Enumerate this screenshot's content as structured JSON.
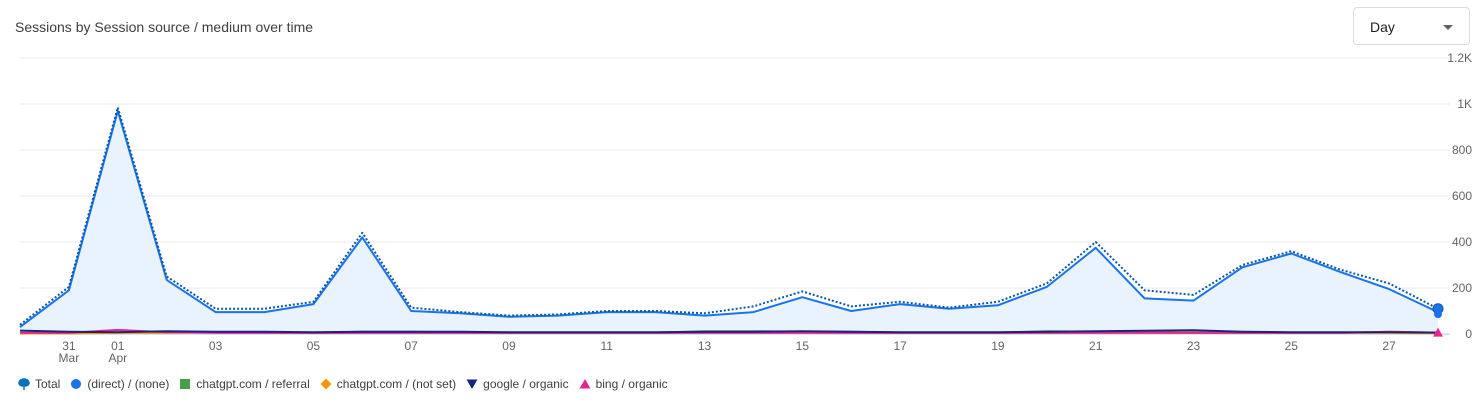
{
  "title": "Sessions by Session source / medium over time",
  "granularity": {
    "selected": "Day"
  },
  "chart_data": {
    "type": "line",
    "title": "Sessions by Session source / medium over time",
    "x_ticks": [
      {
        "day": "31",
        "month": "Mar",
        "index": 1
      },
      {
        "day": "01",
        "month": "Apr",
        "index": 2
      },
      {
        "day": "03",
        "month": "",
        "index": 4
      },
      {
        "day": "05",
        "month": "",
        "index": 6
      },
      {
        "day": "07",
        "month": "",
        "index": 8
      },
      {
        "day": "09",
        "month": "",
        "index": 10
      },
      {
        "day": "11",
        "month": "",
        "index": 12
      },
      {
        "day": "13",
        "month": "",
        "index": 14
      },
      {
        "day": "15",
        "month": "",
        "index": 16
      },
      {
        "day": "17",
        "month": "",
        "index": 18
      },
      {
        "day": "19",
        "month": "",
        "index": 20
      },
      {
        "day": "21",
        "month": "",
        "index": 22
      },
      {
        "day": "23",
        "month": "",
        "index": 24
      },
      {
        "day": "25",
        "month": "",
        "index": 26
      },
      {
        "day": "27",
        "month": "",
        "index": 28
      }
    ],
    "x": [
      "Mar 30",
      "Mar 31",
      "Apr 01",
      "Apr 02",
      "Apr 03",
      "Apr 04",
      "Apr 05",
      "Apr 06",
      "Apr 07",
      "Apr 08",
      "Apr 09",
      "Apr 10",
      "Apr 11",
      "Apr 12",
      "Apr 13",
      "Apr 14",
      "Apr 15",
      "Apr 16",
      "Apr 17",
      "Apr 18",
      "Apr 19",
      "Apr 20",
      "Apr 21",
      "Apr 22",
      "Apr 23",
      "Apr 24",
      "Apr 25",
      "Apr 26",
      "Apr 27",
      "Apr 28"
    ],
    "y_ticks": [
      {
        "value": 0,
        "label": "0"
      },
      {
        "value": 200,
        "label": "200"
      },
      {
        "value": 400,
        "label": "400"
      },
      {
        "value": 600,
        "label": "600"
      },
      {
        "value": 800,
        "label": "800"
      },
      {
        "value": 1000,
        "label": "1K"
      },
      {
        "value": 1200,
        "label": "1.2K"
      }
    ],
    "ylim": [
      0,
      1200
    ],
    "grid": true,
    "legend_position": "bottom-left",
    "series": [
      {
        "name": "Total",
        "color": "#1a73e8",
        "style": "dotted",
        "marker": "balloon",
        "values": [
          40,
          205,
          985,
          250,
          110,
          110,
          140,
          440,
          115,
          95,
          80,
          85,
          100,
          100,
          90,
          120,
          185,
          120,
          140,
          115,
          140,
          220,
          400,
          190,
          170,
          300,
          360,
          280,
          220,
          110
        ]
      },
      {
        "name": "(direct) / (none)",
        "color": "#1a73e8",
        "style": "solid",
        "marker": "circle",
        "values": [
          30,
          190,
          970,
          235,
          95,
          95,
          130,
          420,
          100,
          90,
          75,
          80,
          95,
          95,
          80,
          95,
          160,
          100,
          130,
          110,
          125,
          205,
          375,
          155,
          145,
          290,
          350,
          270,
          195,
          95
        ]
      },
      {
        "name": "chatgpt.com / referral",
        "color": "#43a047",
        "style": "solid",
        "marker": "square",
        "values": [
          3,
          3,
          8,
          8,
          8,
          8,
          6,
          10,
          10,
          8,
          6,
          6,
          6,
          6,
          12,
          12,
          10,
          10,
          6,
          6,
          6,
          12,
          10,
          8,
          6,
          6,
          6,
          6,
          8,
          6
        ]
      },
      {
        "name": "chatgpt.com / (not set)",
        "color": "#f29900",
        "style": "solid",
        "marker": "diamond",
        "values": [
          2,
          2,
          5,
          5,
          8,
          6,
          5,
          6,
          6,
          6,
          5,
          5,
          5,
          5,
          8,
          8,
          8,
          6,
          5,
          5,
          5,
          6,
          6,
          6,
          5,
          5,
          5,
          5,
          5,
          3
        ]
      },
      {
        "name": "google / organic",
        "color": "#1a237e",
        "style": "solid",
        "marker": "triangle-down",
        "values": [
          15,
          10,
          8,
          12,
          10,
          10,
          8,
          10,
          10,
          10,
          8,
          8,
          8,
          8,
          10,
          10,
          12,
          10,
          8,
          8,
          8,
          10,
          12,
          14,
          16,
          10,
          8,
          8,
          8,
          6
        ]
      },
      {
        "name": "bing / organic",
        "color": "#e52592",
        "style": "solid",
        "marker": "triangle-up",
        "values": [
          5,
          5,
          18,
          8,
          5,
          5,
          5,
          5,
          5,
          5,
          5,
          5,
          5,
          5,
          5,
          5,
          5,
          5,
          5,
          5,
          5,
          5,
          5,
          5,
          5,
          5,
          5,
          5,
          10,
          6
        ]
      }
    ]
  }
}
